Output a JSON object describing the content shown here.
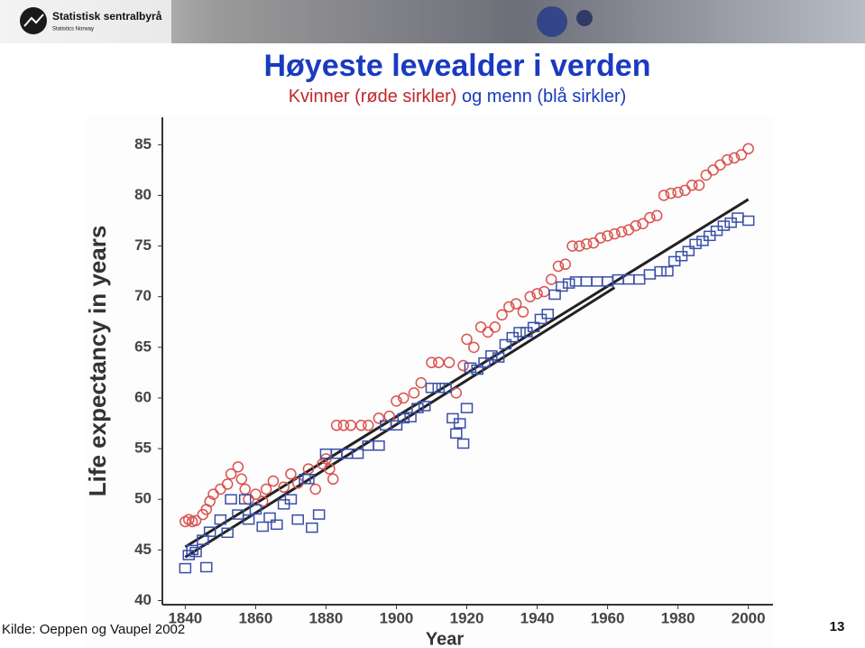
{
  "slide": {
    "logo": "Statistisk sentralbyrå",
    "logo_sub": "Statistics Norway",
    "title": "Høyeste levealder i verden",
    "subtitle_women": "Kvinner (røde sirkler)",
    "subtitle_men": "og menn (blå sirkler)",
    "source": "Kilde: Oeppen og Vaupel 2002",
    "page_number": "13"
  },
  "chart_data": {
    "type": "scatter",
    "x_label": "Year",
    "y_label": "Life expectancy in years",
    "xlim": [
      1833.5,
      2007
    ],
    "ylim": [
      39.6,
      87.7
    ],
    "xticks": [
      1840,
      1860,
      1880,
      1900,
      1920,
      1940,
      1960,
      1980,
      2000
    ],
    "yticks": [
      40,
      45,
      50,
      55,
      60,
      65,
      70,
      75,
      80,
      85
    ],
    "grid": false,
    "series": [
      {
        "color": "#d9534f",
        "marker": "circle",
        "x": [
          1840,
          1841,
          1842,
          1843,
          1845,
          1846,
          1847,
          1848,
          1850,
          1852,
          1853,
          1855,
          1856,
          1857,
          1858,
          1860,
          1862,
          1863,
          1865,
          1868,
          1870,
          1872,
          1875,
          1877,
          1879,
          1880,
          1881,
          1882,
          1883,
          1885,
          1887,
          1890,
          1892,
          1895,
          1898,
          1900,
          1902,
          1905,
          1907,
          1910,
          1912,
          1915,
          1917,
          1919,
          1920,
          1922,
          1924,
          1926,
          1928,
          1930,
          1932,
          1934,
          1936,
          1938,
          1940,
          1942,
          1944,
          1946,
          1948,
          1950,
          1952,
          1954,
          1956,
          1958,
          1960,
          1962,
          1964,
          1966,
          1968,
          1970,
          1972,
          1974,
          1976,
          1978,
          1980,
          1982,
          1984,
          1986,
          1988,
          1990,
          1992,
          1994,
          1996,
          1998,
          2000
        ],
        "values": [
          47.8,
          48,
          47.8,
          47.9,
          48.5,
          49,
          49.8,
          50.5,
          51,
          51.5,
          52.5,
          53.2,
          52,
          51,
          50,
          50.5,
          49.8,
          51,
          51.8,
          51.2,
          52.5,
          51.6,
          53,
          51,
          53.5,
          54,
          53,
          52,
          57.3,
          57.3,
          57.3,
          57.3,
          57.3,
          58,
          58.2,
          59.7,
          60,
          60.5,
          61.5,
          63.5,
          63.5,
          63.5,
          60.5,
          63.2,
          65.8,
          65,
          67,
          66.5,
          67,
          68.2,
          69,
          69.3,
          68.5,
          70,
          70.3,
          70.5,
          71.7,
          73,
          73.2,
          75,
          75,
          75.2,
          75.3,
          75.8,
          76,
          76.2,
          76.4,
          76.6,
          77,
          77.2,
          77.8,
          78,
          80,
          80.2,
          80.3,
          80.5,
          81,
          81,
          82,
          82.5,
          83,
          83.5,
          83.7,
          84,
          84.6
        ]
      },
      {
        "color": "#3a4fa8",
        "marker": "square",
        "x": [
          1840,
          1841,
          1842,
          1843,
          1845,
          1846,
          1847,
          1850,
          1852,
          1853,
          1855,
          1857,
          1858,
          1860,
          1862,
          1864,
          1866,
          1868,
          1870,
          1872,
          1874,
          1875,
          1876,
          1878,
          1880,
          1883,
          1886,
          1889,
          1892,
          1895,
          1897,
          1900,
          1902,
          1904,
          1906,
          1908,
          1910,
          1912,
          1914,
          1916,
          1917,
          1918,
          1919,
          1920,
          1921,
          1923,
          1925,
          1927,
          1929,
          1931,
          1933,
          1935,
          1937,
          1939,
          1941,
          1943,
          1945,
          1947,
          1949,
          1951,
          1954,
          1957,
          1960,
          1963,
          1966,
          1969,
          1972,
          1975,
          1977,
          1979,
          1981,
          1983,
          1985,
          1987,
          1989,
          1991,
          1993,
          1995,
          1997,
          2000
        ],
        "values": [
          43.2,
          44.5,
          45,
          44.8,
          46,
          43.3,
          46.8,
          48,
          46.7,
          50,
          48.5,
          50,
          48,
          49,
          47.3,
          48.2,
          47.5,
          49.5,
          50,
          48,
          52,
          52,
          47.2,
          48.5,
          54.5,
          54.5,
          54.5,
          54.5,
          55.3,
          55.3,
          57.3,
          57.3,
          58,
          58.1,
          59,
          59.2,
          61,
          61,
          61,
          58,
          56.5,
          57.5,
          55.5,
          59,
          63,
          62.8,
          63.5,
          64.2,
          64,
          65.3,
          66,
          66.5,
          66.5,
          67,
          67.8,
          68.3,
          70.2,
          71,
          71.3,
          71.5,
          71.5,
          71.5,
          71.5,
          71.7,
          71.7,
          71.7,
          72.2,
          72.5,
          72.5,
          73.5,
          74,
          74.5,
          75.2,
          75.5,
          76,
          76.5,
          77,
          77.3,
          77.8,
          77.5
        ]
      }
    ],
    "lines": [
      {
        "color": "#222222",
        "x": [
          1840,
          2000
        ],
        "values": [
          45.3,
          79.6
        ]
      },
      {
        "color": "#222222",
        "x": [
          1840,
          1962
        ],
        "values": [
          44.3,
          70.9
        ]
      }
    ]
  }
}
